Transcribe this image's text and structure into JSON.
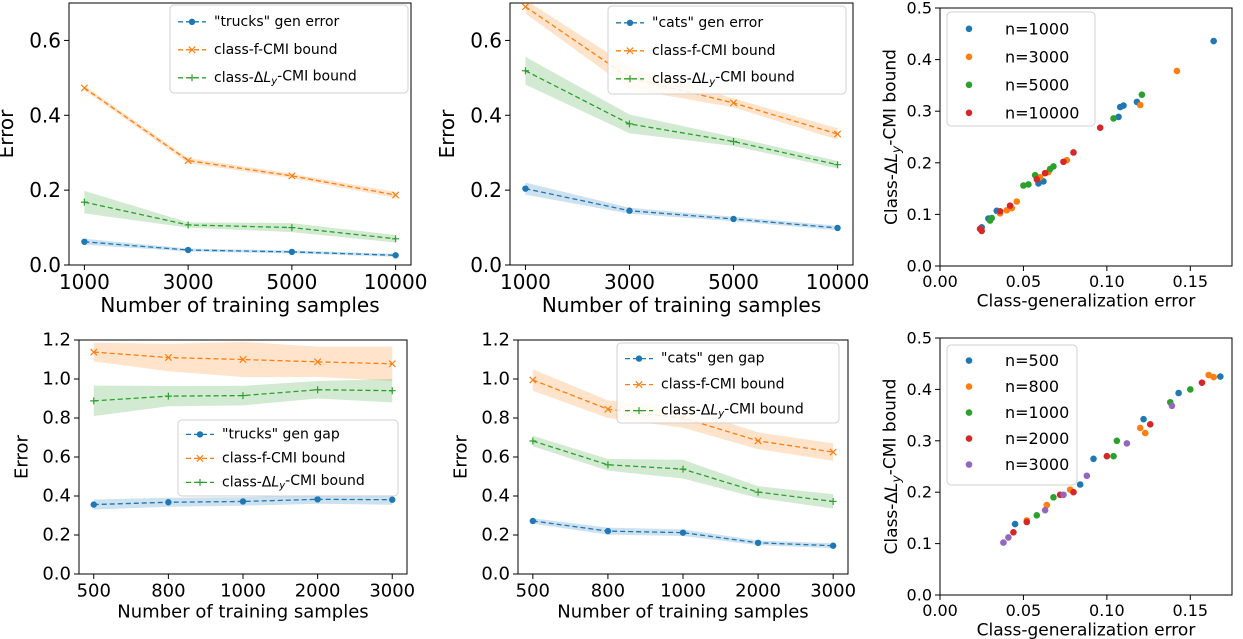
{
  "colors": {
    "blue": "#1f77b4",
    "orange": "#ff7f0e",
    "green": "#2ca02c",
    "red": "#d62728",
    "purple": "#9467bd"
  },
  "chart_data": [
    {
      "id": "top-left",
      "type": "line",
      "x_categorical": true,
      "categories": [
        "1000",
        "3000",
        "5000",
        "10000"
      ],
      "xlabel": "Number of training samples",
      "ylabel": "Error",
      "ylim": [
        0,
        0.7
      ],
      "yticks": [
        0.0,
        0.2,
        0.4,
        0.6
      ],
      "ytick_labels": [
        "0.0",
        "0.2",
        "0.4",
        "0.6"
      ],
      "legend_position": "top-right",
      "series": [
        {
          "name": "\"trucks\" gen error",
          "color": "#1f77b4",
          "marker": "dot",
          "values": [
            0.062,
            0.04,
            0.035,
            0.026
          ],
          "band": [
            [
              0.054,
              0.07
            ],
            [
              0.036,
              0.044
            ],
            [
              0.031,
              0.039
            ],
            [
              0.022,
              0.03
            ]
          ]
        },
        {
          "name": "class-f-CMI bound",
          "color": "#ff7f0e",
          "marker": "x",
          "values": [
            0.473,
            0.279,
            0.238,
            0.187
          ],
          "band": [
            [
              0.467,
              0.479
            ],
            [
              0.272,
              0.286
            ],
            [
              0.232,
              0.244
            ],
            [
              0.179,
              0.195
            ]
          ]
        },
        {
          "name": "class-ΔL_y-CMI bound",
          "color": "#2ca02c",
          "marker": "plus",
          "values": [
            0.168,
            0.107,
            0.1,
            0.07
          ],
          "band": [
            [
              0.138,
              0.198
            ],
            [
              0.1,
              0.114
            ],
            [
              0.088,
              0.112
            ],
            [
              0.06,
              0.08
            ]
          ]
        }
      ]
    },
    {
      "id": "top-middle",
      "type": "line",
      "x_categorical": true,
      "categories": [
        "1000",
        "3000",
        "5000",
        "10000"
      ],
      "xlabel": "Number of training samples",
      "ylabel": "Error",
      "ylim": [
        0,
        0.7
      ],
      "yticks": [
        0.0,
        0.2,
        0.4,
        0.6
      ],
      "ytick_labels": [
        "0.0",
        "0.2",
        "0.4",
        "0.6"
      ],
      "legend_position": "top-right",
      "series": [
        {
          "name": "\"cats\" gen error",
          "color": "#1f77b4",
          "marker": "dot",
          "values": [
            0.204,
            0.145,
            0.123,
            0.099
          ],
          "band": [
            [
              0.188,
              0.22
            ],
            [
              0.137,
              0.153
            ],
            [
              0.117,
              0.129
            ],
            [
              0.093,
              0.105
            ]
          ]
        },
        {
          "name": "class-f-CMI bound",
          "color": "#ff7f0e",
          "marker": "x",
          "values": [
            0.69,
            0.5,
            0.433,
            0.35
          ],
          "band": [
            [
              0.672,
              0.708
            ],
            [
              0.47,
              0.53
            ],
            [
              0.421,
              0.445
            ],
            [
              0.335,
              0.365
            ]
          ]
        },
        {
          "name": "class-ΔL_y-CMI bound",
          "color": "#2ca02c",
          "marker": "plus",
          "values": [
            0.519,
            0.377,
            0.33,
            0.268
          ],
          "band": [
            [
              0.482,
              0.556
            ],
            [
              0.352,
              0.402
            ],
            [
              0.318,
              0.342
            ],
            [
              0.258,
              0.278
            ]
          ]
        }
      ]
    },
    {
      "id": "top-right",
      "type": "scatter",
      "xlabel": "Class-generalization error",
      "ylabel": "Class-ΔL_y-CMI bound",
      "xlim": [
        0,
        0.175
      ],
      "ylim": [
        0,
        0.5
      ],
      "xticks": [
        0.0,
        0.05,
        0.1,
        0.15
      ],
      "xtick_labels": [
        "0.00",
        "0.05",
        "0.10",
        "0.15"
      ],
      "yticks": [
        0.0,
        0.1,
        0.2,
        0.3,
        0.4,
        0.5
      ],
      "ytick_labels": [
        "0.0",
        "0.1",
        "0.2",
        "0.3",
        "0.4",
        "0.5"
      ],
      "legend_position": "top-left",
      "series": [
        {
          "name": "n=1000",
          "color": "#1f77b4",
          "points": [
            [
              0.164,
              0.436
            ],
            [
              0.118,
              0.318
            ],
            [
              0.11,
              0.311
            ],
            [
              0.108,
              0.308
            ],
            [
              0.107,
              0.289
            ],
            [
              0.062,
              0.164
            ],
            [
              0.059,
              0.16
            ],
            [
              0.034,
              0.107
            ],
            [
              0.029,
              0.092
            ],
            [
              0.025,
              0.075
            ]
          ]
        },
        {
          "name": "n=3000",
          "color": "#ff7f0e",
          "points": [
            [
              0.142,
              0.378
            ],
            [
              0.12,
              0.312
            ],
            [
              0.076,
              0.205
            ],
            [
              0.065,
              0.182
            ],
            [
              0.06,
              0.172
            ],
            [
              0.046,
              0.125
            ],
            [
              0.043,
              0.112
            ],
            [
              0.04,
              0.108
            ],
            [
              0.036,
              0.102
            ]
          ]
        },
        {
          "name": "n=5000",
          "color": "#2ca02c",
          "points": [
            [
              0.121,
              0.332
            ],
            [
              0.104,
              0.286
            ],
            [
              0.068,
              0.193
            ],
            [
              0.066,
              0.188
            ],
            [
              0.057,
              0.176
            ],
            [
              0.053,
              0.158
            ],
            [
              0.05,
              0.156
            ],
            [
              0.031,
              0.093
            ],
            [
              0.03,
              0.088
            ]
          ]
        },
        {
          "name": "n=10000",
          "color": "#d62728",
          "points": [
            [
              0.096,
              0.268
            ],
            [
              0.08,
              0.22
            ],
            [
              0.074,
              0.202
            ],
            [
              0.063,
              0.18
            ],
            [
              0.058,
              0.168
            ],
            [
              0.042,
              0.117
            ],
            [
              0.036,
              0.106
            ],
            [
              0.024,
              0.072
            ],
            [
              0.025,
              0.068
            ]
          ]
        }
      ]
    },
    {
      "id": "bottom-left",
      "type": "line",
      "x_categorical": true,
      "categories": [
        "500",
        "800",
        "1000",
        "2000",
        "3000"
      ],
      "xlabel": "Number of training samples",
      "ylabel": "Error",
      "ylim": [
        0,
        1.2
      ],
      "yticks": [
        0.0,
        0.2,
        0.4,
        0.6,
        0.8,
        1.0,
        1.2
      ],
      "ytick_labels": [
        "0.0",
        "0.2",
        "0.4",
        "0.6",
        "0.8",
        "1.0",
        "1.2"
      ],
      "legend_position": "center-right",
      "series": [
        {
          "name": "\"trucks\" gen gap",
          "color": "#1f77b4",
          "marker": "dot",
          "values": [
            0.356,
            0.368,
            0.372,
            0.383,
            0.381
          ],
          "band": [
            [
              0.33,
              0.382
            ],
            [
              0.345,
              0.391
            ],
            [
              0.35,
              0.394
            ],
            [
              0.36,
              0.406
            ],
            [
              0.355,
              0.407
            ]
          ]
        },
        {
          "name": "class-f-CMI bound",
          "color": "#ff7f0e",
          "marker": "x",
          "values": [
            1.138,
            1.11,
            1.1,
            1.088,
            1.078
          ],
          "band": [
            [
              1.09,
              1.186
            ],
            [
              1.04,
              1.18
            ],
            [
              1.01,
              1.19
            ],
            [
              1.01,
              1.166
            ],
            [
              0.99,
              1.166
            ]
          ]
        },
        {
          "name": "class-ΔL_y-CMI bound",
          "color": "#2ca02c",
          "marker": "plus",
          "values": [
            0.888,
            0.912,
            0.915,
            0.945,
            0.94
          ],
          "band": [
            [
              0.81,
              0.966
            ],
            [
              0.86,
              0.964
            ],
            [
              0.865,
              0.965
            ],
            [
              0.9,
              0.99
            ],
            [
              0.88,
              1.0
            ]
          ]
        }
      ]
    },
    {
      "id": "bottom-middle",
      "type": "line",
      "x_categorical": true,
      "categories": [
        "500",
        "800",
        "1000",
        "2000",
        "3000"
      ],
      "xlabel": "Number of training samples",
      "ylabel": "Error",
      "ylim": [
        0,
        1.2
      ],
      "yticks": [
        0.0,
        0.2,
        0.4,
        0.6,
        0.8,
        1.0,
        1.2
      ],
      "ytick_labels": [
        "0.0",
        "0.2",
        "0.4",
        "0.6",
        "0.8",
        "1.0",
        "1.2"
      ],
      "legend_position": "top-right",
      "series": [
        {
          "name": "\"cats\" gen gap",
          "color": "#1f77b4",
          "marker": "dot",
          "values": [
            0.272,
            0.22,
            0.212,
            0.16,
            0.145
          ],
          "band": [
            [
              0.258,
              0.286
            ],
            [
              0.202,
              0.238
            ],
            [
              0.195,
              0.229
            ],
            [
              0.148,
              0.172
            ],
            [
              0.132,
              0.158
            ]
          ]
        },
        {
          "name": "class-f-CMI bound",
          "color": "#ff7f0e",
          "marker": "x",
          "values": [
            0.995,
            0.845,
            0.8,
            0.683,
            0.625
          ],
          "band": [
            [
              0.94,
              1.05
            ],
            [
              0.8,
              0.89
            ],
            [
              0.75,
              0.85
            ],
            [
              0.64,
              0.726
            ],
            [
              0.58,
              0.67
            ]
          ]
        },
        {
          "name": "class-ΔL_y-CMI bound",
          "color": "#2ca02c",
          "marker": "plus",
          "values": [
            0.682,
            0.56,
            0.538,
            0.42,
            0.372
          ],
          "band": [
            [
              0.655,
              0.709
            ],
            [
              0.53,
              0.59
            ],
            [
              0.49,
              0.586
            ],
            [
              0.39,
              0.45
            ],
            [
              0.335,
              0.409
            ]
          ]
        }
      ]
    },
    {
      "id": "bottom-right",
      "type": "scatter",
      "xlabel": "Class-generalization error",
      "ylabel": "Class-ΔL_y-CMI bound",
      "xlim": [
        0,
        0.175
      ],
      "ylim": [
        0,
        0.5
      ],
      "xticks": [
        0.0,
        0.05,
        0.1,
        0.15
      ],
      "xtick_labels": [
        "0.00",
        "0.05",
        "0.10",
        "0.15"
      ],
      "yticks": [
        0.0,
        0.1,
        0.2,
        0.3,
        0.4,
        0.5
      ],
      "ytick_labels": [
        "0.0",
        "0.1",
        "0.2",
        "0.3",
        "0.4",
        "0.5"
      ],
      "legend_position": "top-left",
      "series": [
        {
          "name": "n=500",
          "color": "#1f77b4",
          "points": [
            [
              0.168,
              0.425
            ],
            [
              0.143,
              0.393
            ],
            [
              0.122,
              0.342
            ],
            [
              0.092,
              0.265
            ],
            [
              0.084,
              0.215
            ],
            [
              0.045,
              0.138
            ]
          ]
        },
        {
          "name": "n=800",
          "color": "#ff7f0e",
          "points": [
            [
              0.161,
              0.428
            ],
            [
              0.164,
              0.424
            ],
            [
              0.12,
              0.325
            ],
            [
              0.123,
              0.315
            ],
            [
              0.078,
              0.205
            ],
            [
              0.064,
              0.175
            ],
            [
              0.052,
              0.145
            ]
          ]
        },
        {
          "name": "n=1000",
          "color": "#2ca02c",
          "points": [
            [
              0.15,
              0.4
            ],
            [
              0.138,
              0.375
            ],
            [
              0.106,
              0.3
            ],
            [
              0.104,
              0.27
            ],
            [
              0.068,
              0.19
            ],
            [
              0.058,
              0.155
            ]
          ]
        },
        {
          "name": "n=2000",
          "color": "#d62728",
          "points": [
            [
              0.157,
              0.413
            ],
            [
              0.126,
              0.332
            ],
            [
              0.1,
              0.27
            ],
            [
              0.08,
              0.2
            ],
            [
              0.072,
              0.195
            ],
            [
              0.052,
              0.142
            ],
            [
              0.044,
              0.122
            ]
          ]
        },
        {
          "name": "n=3000",
          "color": "#9467bd",
          "points": [
            [
              0.139,
              0.368
            ],
            [
              0.112,
              0.295
            ],
            [
              0.088,
              0.232
            ],
            [
              0.074,
              0.195
            ],
            [
              0.063,
              0.165
            ],
            [
              0.038,
              0.102
            ],
            [
              0.041,
              0.112
            ]
          ]
        }
      ]
    }
  ]
}
